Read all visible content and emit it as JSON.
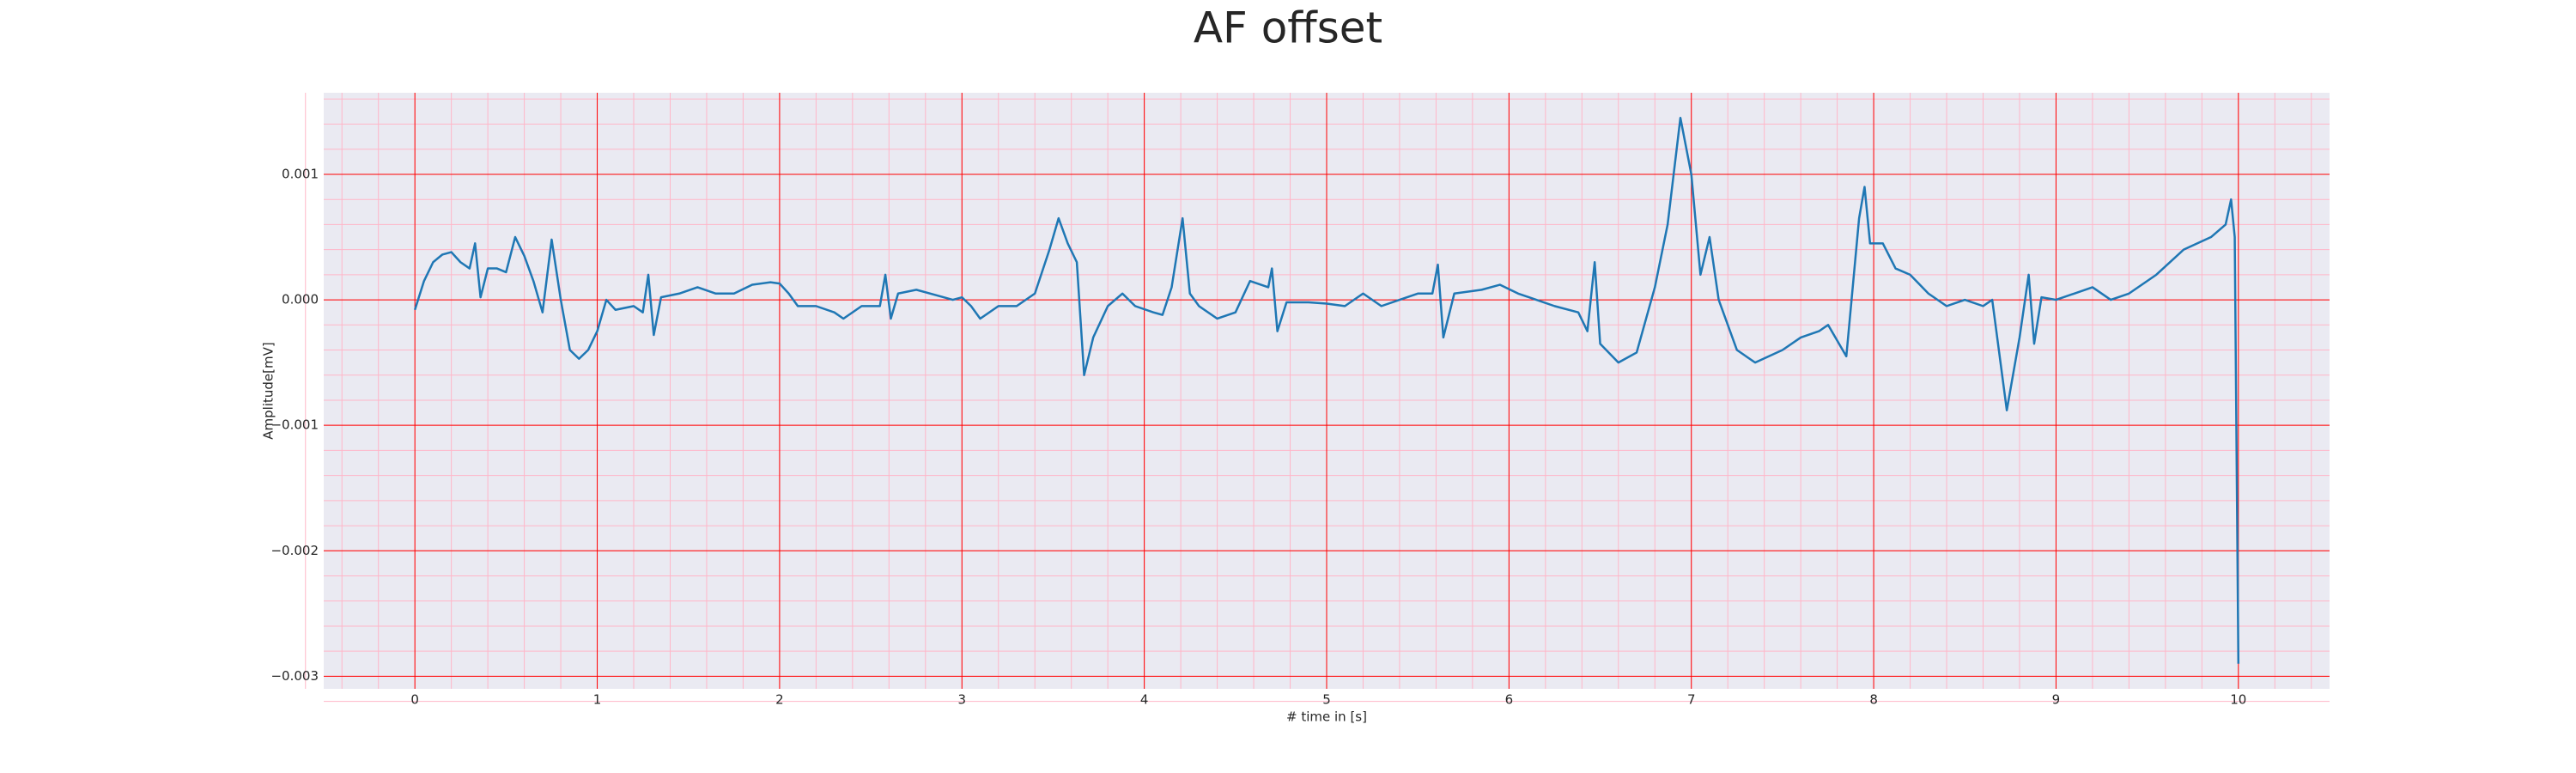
{
  "chart_data": {
    "type": "line",
    "title": "AF offset",
    "xlabel": "# time in [s]",
    "ylabel": "Amplitude[mV]",
    "color": "#1f77b4",
    "grid": true,
    "minor_grid": true,
    "grid_color": "#ff0000",
    "minor_grid_color": "#ffb6c8",
    "xlim": [
      -0.5,
      10.5
    ],
    "xticks": [
      0,
      1,
      2,
      3,
      4,
      5,
      6,
      7,
      8,
      9,
      10
    ],
    "ylim": [
      -0.0031,
      0.00165
    ],
    "yticks": [
      {
        "value": -0.003,
        "label": "−0.003"
      },
      {
        "value": -0.002,
        "label": "−0.002"
      },
      {
        "value": -0.001,
        "label": "−0.001"
      },
      {
        "value": 0,
        "label": "0.000"
      },
      0.001
    ],
    "x": [
      0.0,
      0.05,
      0.1,
      0.15,
      0.2,
      0.25,
      0.3,
      0.33,
      0.36,
      0.4,
      0.45,
      0.5,
      0.55,
      0.6,
      0.65,
      0.7,
      0.75,
      0.8,
      0.85,
      0.9,
      0.95,
      1.0,
      1.05,
      1.1,
      1.2,
      1.25,
      1.28,
      1.31,
      1.35,
      1.45,
      1.55,
      1.65,
      1.75,
      1.85,
      1.95,
      2.0,
      2.05,
      2.1,
      2.2,
      2.3,
      2.35,
      2.45,
      2.55,
      2.58,
      2.61,
      2.65,
      2.75,
      2.85,
      2.95,
      3.0,
      3.05,
      3.1,
      3.2,
      3.3,
      3.4,
      3.48,
      3.53,
      3.58,
      3.63,
      3.67,
      3.72,
      3.8,
      3.88,
      3.95,
      4.05,
      4.1,
      4.15,
      4.21,
      4.25,
      4.3,
      4.4,
      4.5,
      4.58,
      4.68,
      4.7,
      4.73,
      4.78,
      4.9,
      5.0,
      5.1,
      5.2,
      5.3,
      5.4,
      5.5,
      5.58,
      5.61,
      5.64,
      5.7,
      5.85,
      5.95,
      6.05,
      6.15,
      6.25,
      6.38,
      6.43,
      6.47,
      6.5,
      6.6,
      6.7,
      6.8,
      6.87,
      6.94,
      7.0,
      7.05,
      7.1,
      7.15,
      7.25,
      7.35,
      7.5,
      7.6,
      7.7,
      7.75,
      7.85,
      7.92,
      7.95,
      7.98,
      8.05,
      8.12,
      8.2,
      8.3,
      8.4,
      8.5,
      8.6,
      8.65,
      8.73,
      8.8,
      8.85,
      8.88,
      8.92,
      9.0,
      9.1,
      9.2,
      9.3,
      9.4,
      9.55,
      9.7,
      9.85,
      9.93,
      9.96,
      9.98,
      10.0
    ],
    "values": [
      -8e-05,
      0.00015,
      0.0003,
      0.00036,
      0.00038,
      0.0003,
      0.00025,
      0.00045,
      2e-05,
      0.00025,
      0.00025,
      0.00022,
      0.0005,
      0.00035,
      0.00015,
      -0.0001,
      0.00048,
      0.0,
      -0.0004,
      -0.00047,
      -0.0004,
      -0.00025,
      0.0,
      -8e-05,
      -5e-05,
      -0.0001,
      0.0002,
      -0.00028,
      2e-05,
      5e-05,
      0.0001,
      5e-05,
      5e-05,
      0.00012,
      0.00014,
      0.00013,
      5e-05,
      -5e-05,
      -5e-05,
      -0.0001,
      -0.00015,
      -5e-05,
      -5e-05,
      0.0002,
      -0.00015,
      5e-05,
      8e-05,
      4e-05,
      0.0,
      2e-05,
      -5e-05,
      -0.00015,
      -5e-05,
      -5e-05,
      5e-05,
      0.0004,
      0.00065,
      0.00045,
      0.0003,
      -0.0006,
      -0.0003,
      -5e-05,
      5e-05,
      -5e-05,
      -0.0001,
      -0.00012,
      0.0001,
      0.00065,
      5e-05,
      -5e-05,
      -0.00015,
      -0.0001,
      0.00015,
      0.0001,
      0.00025,
      -0.00025,
      -2e-05,
      -2e-05,
      -3e-05,
      -5e-05,
      5e-05,
      -5e-05,
      0.0,
      5e-05,
      5e-05,
      0.00028,
      -0.0003,
      5e-05,
      8e-05,
      0.00012,
      5e-05,
      0.0,
      -5e-05,
      -0.0001,
      -0.00025,
      0.0003,
      -0.00035,
      -0.0005,
      -0.00042,
      0.0001,
      0.0006,
      0.00145,
      0.001,
      0.0002,
      0.0005,
      0.0,
      -0.0004,
      -0.0005,
      -0.0004,
      -0.0003,
      -0.00025,
      -0.0002,
      -0.00045,
      0.00065,
      0.0009,
      0.00045,
      0.00045,
      0.00025,
      0.0002,
      5e-05,
      -5e-05,
      0.0,
      -5e-05,
      0.0,
      -0.00088,
      -0.0003,
      0.0002,
      -0.00035,
      2e-05,
      0.0,
      5e-05,
      0.0001,
      0.0,
      5e-05,
      0.0002,
      0.0004,
      0.0005,
      0.0006,
      0.0008,
      0.0005,
      -0.0029
    ]
  }
}
